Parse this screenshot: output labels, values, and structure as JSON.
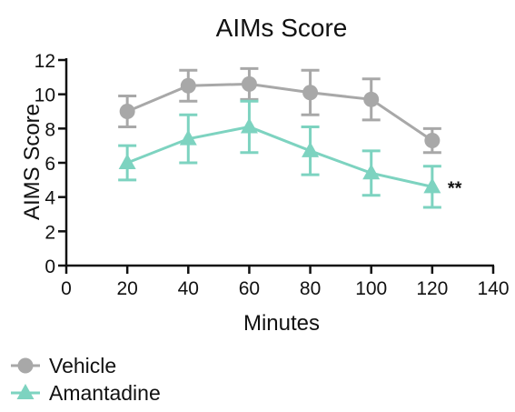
{
  "chart_data": {
    "type": "line",
    "title": "AIMs Score",
    "xlabel": "Minutes",
    "ylabel": "AIMS Score",
    "xlim": [
      0,
      140
    ],
    "ylim": [
      0,
      12
    ],
    "xticks": [
      0,
      20,
      40,
      60,
      80,
      100,
      120,
      140
    ],
    "yticks": [
      0,
      2,
      4,
      6,
      8,
      10,
      12
    ],
    "x": [
      20,
      40,
      60,
      80,
      100,
      120
    ],
    "series": [
      {
        "name": "Vehicle",
        "marker": "circle",
        "color": "#a8a8a8",
        "values": [
          9.0,
          10.5,
          10.6,
          10.1,
          9.7,
          7.3
        ],
        "error": [
          0.9,
          0.9,
          0.9,
          1.3,
          1.2,
          0.7
        ]
      },
      {
        "name": "Amantadine",
        "marker": "triangle",
        "color": "#7dd3c0",
        "values": [
          6.0,
          7.4,
          8.1,
          6.7,
          5.4,
          4.6
        ],
        "error": [
          1.0,
          1.4,
          1.5,
          1.4,
          1.3,
          1.2
        ]
      }
    ],
    "annotations": [
      {
        "text": "**",
        "x": 120,
        "y": 4.6
      }
    ],
    "grid": false,
    "legend_position": "bottom-left"
  }
}
